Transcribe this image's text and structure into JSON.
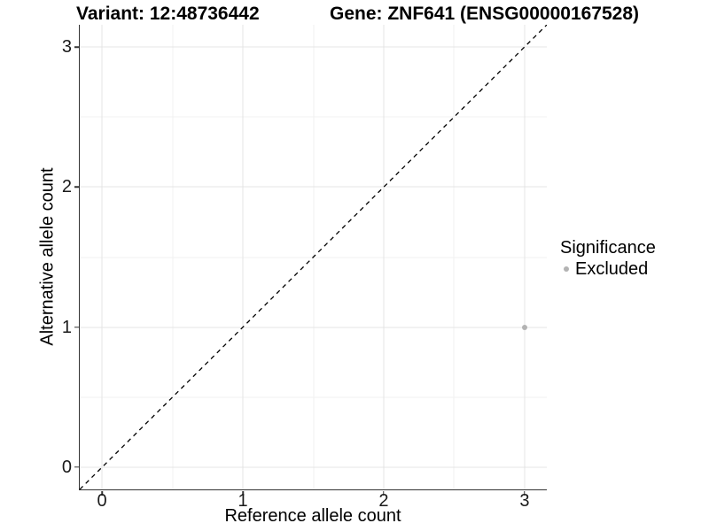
{
  "chart_data": {
    "type": "scatter",
    "title_left": "Variant: 12:48736442",
    "title_right": "Gene: ZNF641 (ENSG00000167528)",
    "xlabel": "Reference allele count",
    "ylabel": "Alternative allele count",
    "xlim": [
      -0.158,
      3.158
    ],
    "ylim": [
      -0.158,
      3.158
    ],
    "x_ticks": [
      0,
      1,
      2,
      3
    ],
    "y_ticks": [
      0,
      1,
      2,
      3
    ],
    "x_minor_ticks": [
      0.5,
      1.5,
      2.5
    ],
    "y_minor_ticks": [
      0.5,
      1.5,
      2.5
    ],
    "grid": "major+minor",
    "reference_line": {
      "type": "identity y=x",
      "style": "dashed",
      "color": "#000000"
    },
    "series": [
      {
        "name": "Excluded",
        "color": "#b3b3b3",
        "points": [
          {
            "x": 3,
            "y": 1
          }
        ]
      }
    ],
    "legend": {
      "title": "Significance",
      "position": "right",
      "entries": [
        {
          "label": "Excluded",
          "color": "#b3b3b3"
        }
      ]
    }
  },
  "colors": {
    "background": "#ffffff",
    "axis_line": "#333333",
    "grid_major": "#e4e4e4",
    "grid_minor": "#f1f1f1",
    "tick_label": "#1a1a1a",
    "title_text": "#000000"
  }
}
